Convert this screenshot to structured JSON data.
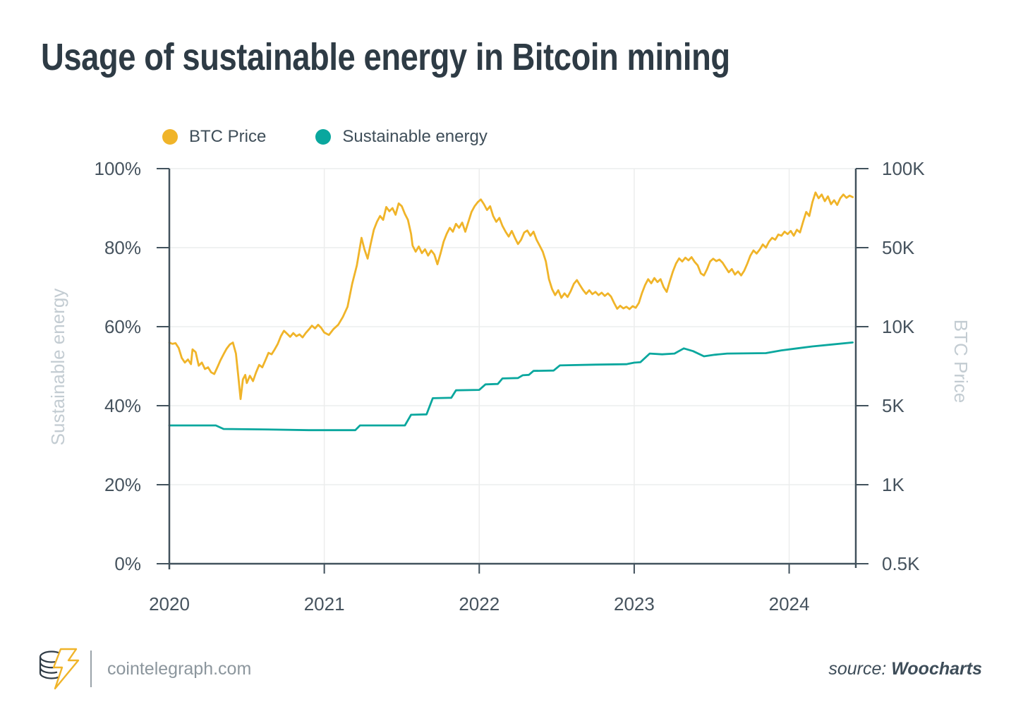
{
  "title": "Usage of sustainable energy in Bitcoin mining",
  "legend": [
    {
      "label": "BTC Price",
      "color": "#F0B429"
    },
    {
      "label": "Sustainable energy",
      "color": "#0AA79E"
    }
  ],
  "footer": {
    "site": "cointelegraph.com",
    "source_label": "source:",
    "source_name": "Woocharts"
  },
  "colors": {
    "title": "#2E3B45",
    "axis_text": "#46535E",
    "muted_axis_title": "#C3CCD2",
    "grid": "#ECEDED",
    "spine": "#42525D",
    "btc_line": "#F0B429",
    "energy_line": "#0AA79E",
    "footer_text": "#8C969D"
  },
  "chart_data": {
    "type": "line",
    "title": "Usage of sustainable energy in Bitcoin mining",
    "grid": true,
    "legend_position": "top-left",
    "x_axis": {
      "min": 2020,
      "max": 2024.43,
      "ticks": [
        {
          "label": "2020",
          "value": 2020
        },
        {
          "label": "2021",
          "value": 2021
        },
        {
          "label": "2022",
          "value": 2022
        },
        {
          "label": "2023",
          "value": 2023
        },
        {
          "label": "2024",
          "value": 2024
        }
      ]
    },
    "left_axis": {
      "title": "Sustainable energy",
      "unit": "%",
      "min": 0,
      "max": 100,
      "ticks": [
        {
          "label": "0%",
          "value": 0
        },
        {
          "label": "20%",
          "value": 20
        },
        {
          "label": "40%",
          "value": 40
        },
        {
          "label": "60%",
          "value": 60
        },
        {
          "label": "80%",
          "value": 80
        },
        {
          "label": "100%",
          "value": 100
        }
      ]
    },
    "right_axis": {
      "title": "BTC Price",
      "unit": "K USD",
      "scale": "log-segments",
      "ticks": [
        {
          "label": "0.5K",
          "value": 0.5
        },
        {
          "label": "1K",
          "value": 1
        },
        {
          "label": "5K",
          "value": 5
        },
        {
          "label": "10K",
          "value": 10
        },
        {
          "label": "50K",
          "value": 50
        },
        {
          "label": "100K",
          "value": 100
        }
      ]
    },
    "series": [
      {
        "name": "BTC Price",
        "axis": "right",
        "color": "#F0B429",
        "unit": "K USD",
        "points": [
          [
            2020.0,
            8.7
          ],
          [
            2020.02,
            8.6
          ],
          [
            2020.04,
            8.65
          ],
          [
            2020.06,
            8.3
          ],
          [
            2020.08,
            7.6
          ],
          [
            2020.1,
            7.3
          ],
          [
            2020.12,
            7.5
          ],
          [
            2020.14,
            7.2
          ],
          [
            2020.15,
            8.2
          ],
          [
            2020.17,
            8.0
          ],
          [
            2020.19,
            7.1
          ],
          [
            2020.21,
            7.3
          ],
          [
            2020.23,
            6.9
          ],
          [
            2020.25,
            7.0
          ],
          [
            2020.27,
            6.7
          ],
          [
            2020.29,
            6.6
          ],
          [
            2020.31,
            7.0
          ],
          [
            2020.33,
            7.45
          ],
          [
            2020.35,
            7.85
          ],
          [
            2020.37,
            8.25
          ],
          [
            2020.39,
            8.55
          ],
          [
            2020.41,
            8.7
          ],
          [
            2020.43,
            7.9
          ],
          [
            2020.445,
            6.5
          ],
          [
            2020.46,
            5.3
          ],
          [
            2020.475,
            6.3
          ],
          [
            2020.49,
            6.55
          ],
          [
            2020.5,
            6.1
          ],
          [
            2020.52,
            6.5
          ],
          [
            2020.54,
            6.2
          ],
          [
            2020.56,
            6.7
          ],
          [
            2020.58,
            7.15
          ],
          [
            2020.6,
            7.0
          ],
          [
            2020.62,
            7.45
          ],
          [
            2020.64,
            7.95
          ],
          [
            2020.66,
            7.85
          ],
          [
            2020.68,
            8.2
          ],
          [
            2020.7,
            8.6
          ],
          [
            2020.72,
            9.2
          ],
          [
            2020.74,
            9.65
          ],
          [
            2020.76,
            9.4
          ],
          [
            2020.78,
            9.15
          ],
          [
            2020.8,
            9.45
          ],
          [
            2020.82,
            9.2
          ],
          [
            2020.84,
            9.35
          ],
          [
            2020.86,
            9.1
          ],
          [
            2020.88,
            9.45
          ],
          [
            2020.9,
            9.75
          ],
          [
            2020.92,
            10.2
          ],
          [
            2020.94,
            9.85
          ],
          [
            2020.96,
            10.4
          ],
          [
            2020.98,
            9.9
          ],
          [
            2021.0,
            9.5
          ],
          [
            2021.03,
            9.3
          ],
          [
            2021.06,
            9.8
          ],
          [
            2021.09,
            10.4
          ],
          [
            2021.12,
            12.2
          ],
          [
            2021.15,
            15.0
          ],
          [
            2021.18,
            24.0
          ],
          [
            2021.21,
            34.8
          ],
          [
            2021.24,
            54.5
          ],
          [
            2021.26,
            48.0
          ],
          [
            2021.28,
            40.0
          ],
          [
            2021.3,
            51.8
          ],
          [
            2021.32,
            58.5
          ],
          [
            2021.34,
            62.7
          ],
          [
            2021.36,
            66.0
          ],
          [
            2021.38,
            63.8
          ],
          [
            2021.4,
            71.4
          ],
          [
            2021.42,
            68.8
          ],
          [
            2021.44,
            70.7
          ],
          [
            2021.46,
            66.7
          ],
          [
            2021.48,
            73.7
          ],
          [
            2021.5,
            71.9
          ],
          [
            2021.52,
            67.2
          ],
          [
            2021.54,
            63.8
          ],
          [
            2021.56,
            56.5
          ],
          [
            2021.57,
            50.9
          ],
          [
            2021.59,
            46.1
          ],
          [
            2021.61,
            50.5
          ],
          [
            2021.63,
            44.7
          ],
          [
            2021.65,
            48.4
          ],
          [
            2021.67,
            42.5
          ],
          [
            2021.69,
            47.2
          ],
          [
            2021.71,
            43.5
          ],
          [
            2021.73,
            35.6
          ],
          [
            2021.75,
            44.3
          ],
          [
            2021.77,
            52.7
          ],
          [
            2021.79,
            56.5
          ],
          [
            2021.81,
            59.5
          ],
          [
            2021.83,
            57.5
          ],
          [
            2021.85,
            61.6
          ],
          [
            2021.87,
            59.5
          ],
          [
            2021.89,
            62.3
          ],
          [
            2021.91,
            57.5
          ],
          [
            2021.93,
            62.7
          ],
          [
            2021.95,
            68.4
          ],
          [
            2021.97,
            71.9
          ],
          [
            2021.99,
            74.5
          ],
          [
            2022.01,
            76.3
          ],
          [
            2022.03,
            73.2
          ],
          [
            2022.05,
            69.6
          ],
          [
            2022.07,
            71.9
          ],
          [
            2022.09,
            66.0
          ],
          [
            2022.11,
            62.7
          ],
          [
            2022.13,
            64.9
          ],
          [
            2022.15,
            60.5
          ],
          [
            2022.17,
            57.5
          ],
          [
            2022.19,
            55.1
          ],
          [
            2022.21,
            57.9
          ],
          [
            2022.23,
            54.5
          ],
          [
            2022.25,
            51.6
          ],
          [
            2022.27,
            53.6
          ],
          [
            2022.29,
            57.1
          ],
          [
            2022.31,
            58.1
          ],
          [
            2022.33,
            55.5
          ],
          [
            2022.35,
            57.5
          ],
          [
            2022.37,
            53.6
          ],
          [
            2022.39,
            50.9
          ],
          [
            2022.41,
            46.1
          ],
          [
            2022.43,
            37.7
          ],
          [
            2022.45,
            26.3
          ],
          [
            2022.47,
            21.5
          ],
          [
            2022.49,
            19.0
          ],
          [
            2022.51,
            21.0
          ],
          [
            2022.53,
            18.0
          ],
          [
            2022.55,
            19.7
          ],
          [
            2022.57,
            18.3
          ],
          [
            2022.59,
            20.6
          ],
          [
            2022.61,
            23.9
          ],
          [
            2022.63,
            25.8
          ],
          [
            2022.65,
            23.3
          ],
          [
            2022.67,
            21.1
          ],
          [
            2022.69,
            19.5
          ],
          [
            2022.71,
            21.0
          ],
          [
            2022.73,
            19.4
          ],
          [
            2022.75,
            20.3
          ],
          [
            2022.77,
            19.0
          ],
          [
            2022.79,
            20.0
          ],
          [
            2022.81,
            18.7
          ],
          [
            2022.83,
            19.7
          ],
          [
            2022.85,
            18.5
          ],
          [
            2022.87,
            16.2
          ],
          [
            2022.89,
            14.4
          ],
          [
            2022.91,
            15.3
          ],
          [
            2022.93,
            14.5
          ],
          [
            2022.95,
            15.0
          ],
          [
            2022.97,
            14.3
          ],
          [
            2022.99,
            15.2
          ],
          [
            2023.01,
            14.7
          ],
          [
            2023.03,
            16.2
          ],
          [
            2023.05,
            19.8
          ],
          [
            2023.07,
            23.3
          ],
          [
            2023.09,
            26.3
          ],
          [
            2023.11,
            24.2
          ],
          [
            2023.13,
            26.9
          ],
          [
            2023.15,
            24.8
          ],
          [
            2023.17,
            26.3
          ],
          [
            2023.19,
            22.4
          ],
          [
            2023.21,
            20.3
          ],
          [
            2023.23,
            25.2
          ],
          [
            2023.25,
            30.8
          ],
          [
            2023.27,
            36.2
          ],
          [
            2023.29,
            40.2
          ],
          [
            2023.31,
            37.7
          ],
          [
            2023.33,
            40.8
          ],
          [
            2023.35,
            38.6
          ],
          [
            2023.37,
            41.2
          ],
          [
            2023.39,
            37.4
          ],
          [
            2023.41,
            34.8
          ],
          [
            2023.43,
            29.6
          ],
          [
            2023.45,
            28.4
          ],
          [
            2023.47,
            32.1
          ],
          [
            2023.49,
            37.7
          ],
          [
            2023.51,
            39.9
          ],
          [
            2023.53,
            38.0
          ],
          [
            2023.55,
            39.2
          ],
          [
            2023.57,
            36.8
          ],
          [
            2023.59,
            33.4
          ],
          [
            2023.61,
            30.3
          ],
          [
            2023.63,
            32.3
          ],
          [
            2023.65,
            28.9
          ],
          [
            2023.67,
            30.8
          ],
          [
            2023.69,
            28.4
          ],
          [
            2023.71,
            31.3
          ],
          [
            2023.73,
            36.2
          ],
          [
            2023.75,
            42.5
          ],
          [
            2023.77,
            47.2
          ],
          [
            2023.79,
            44.3
          ],
          [
            2023.81,
            48.0
          ],
          [
            2023.83,
            51.4
          ],
          [
            2023.85,
            50.0
          ],
          [
            2023.87,
            52.7
          ],
          [
            2023.89,
            54.5
          ],
          [
            2023.91,
            53.6
          ],
          [
            2023.93,
            56.1
          ],
          [
            2023.95,
            55.5
          ],
          [
            2023.97,
            57.5
          ],
          [
            2023.99,
            56.3
          ],
          [
            2024.01,
            57.9
          ],
          [
            2024.03,
            55.5
          ],
          [
            2024.05,
            58.5
          ],
          [
            2024.07,
            57.1
          ],
          [
            2024.09,
            62.7
          ],
          [
            2024.11,
            68.4
          ],
          [
            2024.13,
            66.0
          ],
          [
            2024.15,
            74.5
          ],
          [
            2024.17,
            81.1
          ],
          [
            2024.19,
            77.1
          ],
          [
            2024.21,
            79.7
          ],
          [
            2024.23,
            75.2
          ],
          [
            2024.25,
            78.4
          ],
          [
            2024.27,
            73.2
          ],
          [
            2024.29,
            75.8
          ],
          [
            2024.31,
            72.7
          ],
          [
            2024.33,
            77.1
          ],
          [
            2024.35,
            79.7
          ],
          [
            2024.37,
            77.4
          ],
          [
            2024.39,
            78.9
          ],
          [
            2024.41,
            77.9
          ]
        ]
      },
      {
        "name": "Sustainable energy",
        "axis": "left",
        "color": "#0AA79E",
        "unit": "%",
        "points": [
          [
            2020.0,
            35.0
          ],
          [
            2020.3,
            35.0
          ],
          [
            2020.35,
            34.1
          ],
          [
            2020.6,
            34.0
          ],
          [
            2020.9,
            33.8
          ],
          [
            2021.2,
            33.8
          ],
          [
            2021.23,
            35.0
          ],
          [
            2021.52,
            35.0
          ],
          [
            2021.56,
            37.7
          ],
          [
            2021.66,
            37.8
          ],
          [
            2021.7,
            41.9
          ],
          [
            2021.82,
            42.0
          ],
          [
            2021.85,
            43.9
          ],
          [
            2022.0,
            44.0
          ],
          [
            2022.04,
            45.4
          ],
          [
            2022.12,
            45.5
          ],
          [
            2022.15,
            46.9
          ],
          [
            2022.25,
            47.0
          ],
          [
            2022.28,
            47.7
          ],
          [
            2022.32,
            47.8
          ],
          [
            2022.35,
            48.8
          ],
          [
            2022.48,
            48.9
          ],
          [
            2022.52,
            50.2
          ],
          [
            2022.75,
            50.4
          ],
          [
            2022.95,
            50.5
          ],
          [
            2023.0,
            50.9
          ],
          [
            2023.04,
            51.0
          ],
          [
            2023.1,
            53.2
          ],
          [
            2023.18,
            53.0
          ],
          [
            2023.26,
            53.2
          ],
          [
            2023.32,
            54.5
          ],
          [
            2023.38,
            53.8
          ],
          [
            2023.45,
            52.5
          ],
          [
            2023.52,
            52.9
          ],
          [
            2023.6,
            53.2
          ],
          [
            2023.85,
            53.3
          ],
          [
            2023.95,
            54.0
          ],
          [
            2024.05,
            54.5
          ],
          [
            2024.15,
            55.0
          ],
          [
            2024.28,
            55.5
          ],
          [
            2024.41,
            56.0
          ]
        ]
      }
    ]
  }
}
